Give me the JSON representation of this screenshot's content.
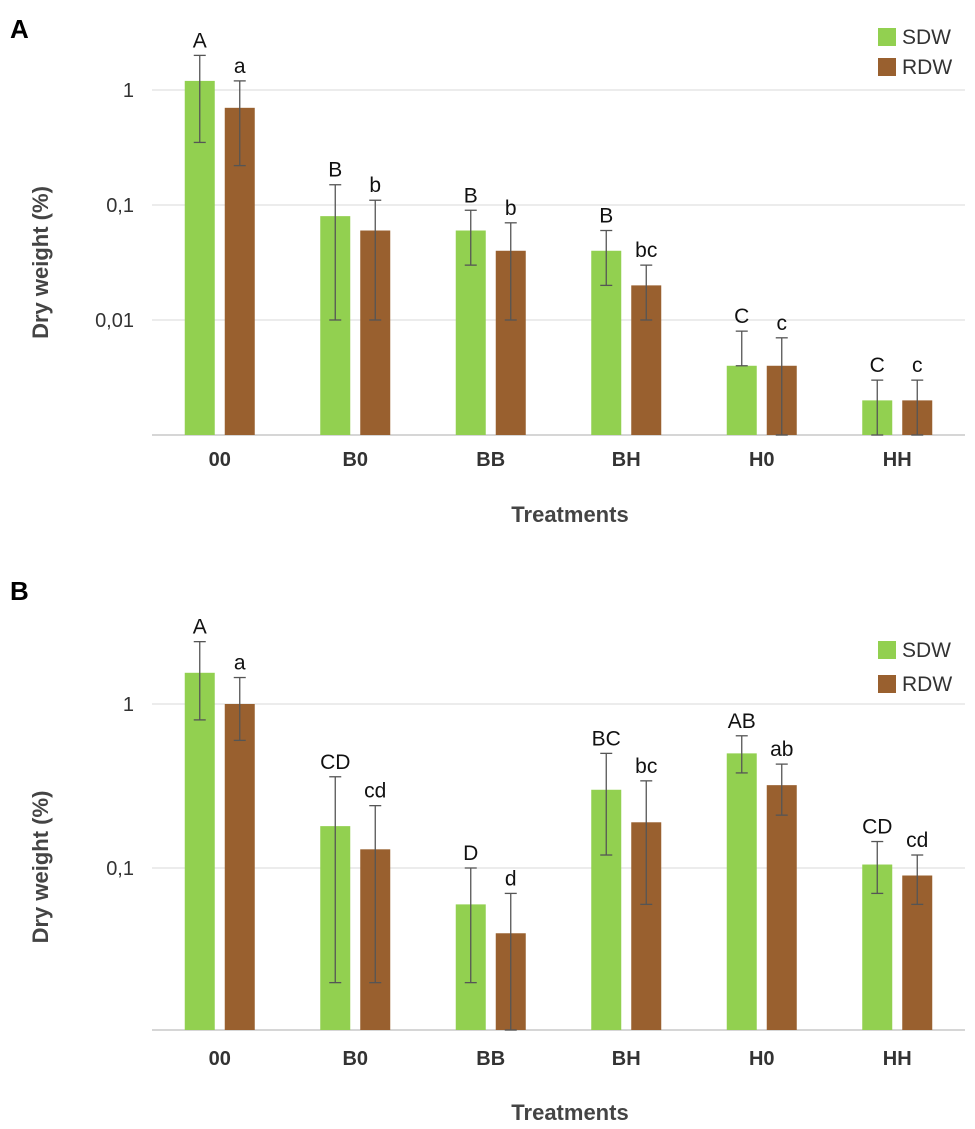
{
  "chart_data": [
    {
      "panel": "A",
      "type": "bar",
      "scale": "log",
      "title": "",
      "xlabel": "Treatments",
      "ylabel": "Dry weight (%)",
      "ylim": [
        0.001,
        10
      ],
      "ytick_values": [
        1,
        0.1,
        0.01
      ],
      "ytick_labels": [
        "1",
        "0,1",
        "0,01"
      ],
      "categories": [
        "00",
        "B0",
        "BB",
        "BH",
        "H0",
        "HH"
      ],
      "legend_position": "top-right",
      "series": [
        {
          "name": "SDW",
          "color": "#92d050",
          "values": [
            1.2,
            0.08,
            0.06,
            0.04,
            0.004,
            0.002
          ],
          "err_low": [
            0.35,
            0.01,
            0.03,
            0.02,
            0.004,
            0.001
          ],
          "err_high": [
            2.0,
            0.15,
            0.09,
            0.06,
            0.008,
            0.003
          ],
          "labels": [
            "A",
            "B",
            "B",
            "B",
            "C",
            "C"
          ]
        },
        {
          "name": "RDW",
          "color": "#99602f",
          "values": [
            0.7,
            0.06,
            0.04,
            0.02,
            0.004,
            0.002
          ],
          "err_low": [
            0.22,
            0.01,
            0.01,
            0.01,
            0.001,
            0.001
          ],
          "err_high": [
            1.2,
            0.11,
            0.07,
            0.03,
            0.007,
            0.003
          ],
          "labels": [
            "a",
            "b",
            "b",
            "bc",
            "c",
            "c"
          ]
        }
      ]
    },
    {
      "panel": "B",
      "type": "bar",
      "scale": "log",
      "title": "",
      "xlabel": "Treatments",
      "ylabel": "Dry weight (%)",
      "ylim": [
        0.01,
        10
      ],
      "ytick_values": [
        1,
        0.1
      ],
      "ytick_labels": [
        "1",
        "0,1"
      ],
      "categories": [
        "00",
        "B0",
        "BB",
        "BH",
        "H0",
        "HH"
      ],
      "legend_position": "top-right",
      "series": [
        {
          "name": "SDW",
          "color": "#92d050",
          "values": [
            1.55,
            0.18,
            0.06,
            0.3,
            0.5,
            0.105
          ],
          "err_low": [
            0.8,
            0.02,
            0.02,
            0.12,
            0.38,
            0.07
          ],
          "err_high": [
            2.4,
            0.36,
            0.1,
            0.5,
            0.64,
            0.145
          ],
          "labels": [
            "A",
            "CD",
            "D",
            "BC",
            "AB",
            "CD"
          ]
        },
        {
          "name": "RDW",
          "color": "#99602f",
          "values": [
            1.0,
            0.13,
            0.04,
            0.19,
            0.32,
            0.09
          ],
          "err_low": [
            0.6,
            0.02,
            0.01,
            0.06,
            0.21,
            0.06
          ],
          "err_high": [
            1.45,
            0.24,
            0.07,
            0.34,
            0.43,
            0.12
          ],
          "labels": [
            "a",
            "cd",
            "d",
            "bc",
            "ab",
            "cd"
          ]
        }
      ]
    }
  ]
}
